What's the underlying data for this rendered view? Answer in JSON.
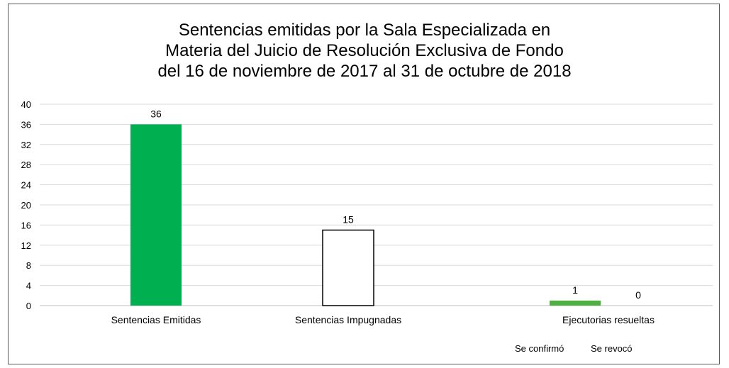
{
  "chart_data": {
    "type": "bar",
    "title": [
      "Sentencias emitidas por la Sala Especializada en",
      "Materia del Juicio de Resolución Exclusiva de Fondo",
      "del 16 de noviembre de 2017 al 31 de octubre de 2018"
    ],
    "xlabel": "",
    "ylabel": "",
    "ylim": [
      0,
      40
    ],
    "yticks": [
      "0",
      "4",
      "8",
      "12",
      "16",
      "20",
      "24",
      "28",
      "32",
      "36",
      "40"
    ],
    "grid": true,
    "categories": [
      "Sentencias Emitidas",
      "Sentencias Impugnadas",
      "Ejecutorias resueltas"
    ],
    "bars": [
      {
        "category": 0,
        "value": 36,
        "label": "36",
        "fill": "#00b050",
        "stroke": "none"
      },
      {
        "category": 1,
        "value": 15,
        "label": "15",
        "fill": "#ffffff",
        "stroke": "#000000"
      },
      {
        "category": 2,
        "value": 1,
        "label": "1",
        "fill": "#4eb040",
        "stroke": "none"
      },
      {
        "category": 2,
        "value": 0,
        "label": "0",
        "fill": "#4eb040",
        "stroke": "none"
      }
    ],
    "sublabels": [
      "Se confirmó",
      "Se revocó"
    ]
  }
}
